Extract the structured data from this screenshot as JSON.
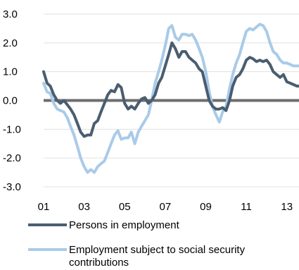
{
  "chart_data": {
    "type": "line",
    "title": "",
    "xlabel": "",
    "ylabel": "",
    "ylim": [
      -3.0,
      3.0
    ],
    "xlim": [
      2001.0,
      2013.6
    ],
    "y_ticks": [
      "3.0",
      "2.0",
      "1.0",
      "0.0",
      "-1.0",
      "-2.0",
      "-3.0"
    ],
    "y_tick_values": [
      3,
      2,
      1,
      0,
      -1,
      -2,
      -3
    ],
    "x_ticks": [
      "01",
      "03",
      "05",
      "07",
      "09",
      "11",
      "13"
    ],
    "x_tick_values": [
      2001,
      2003,
      2005,
      2007,
      2009,
      2011,
      2013
    ],
    "grid": true,
    "zero_line": true,
    "legend_position": "bottom",
    "series": [
      {
        "name": "Persons in employment",
        "color": "#4a5d70",
        "x": [
          2001.0,
          2001.17,
          2001.33,
          2001.5,
          2001.67,
          2001.83,
          2002.0,
          2002.17,
          2002.33,
          2002.5,
          2002.67,
          2002.83,
          2003.0,
          2003.17,
          2003.33,
          2003.5,
          2003.67,
          2003.83,
          2004.0,
          2004.17,
          2004.33,
          2004.5,
          2004.67,
          2004.83,
          2005.0,
          2005.17,
          2005.33,
          2005.5,
          2005.67,
          2005.83,
          2006.0,
          2006.17,
          2006.33,
          2006.5,
          2006.67,
          2006.83,
          2007.0,
          2007.17,
          2007.33,
          2007.5,
          2007.67,
          2007.83,
          2008.0,
          2008.17,
          2008.33,
          2008.5,
          2008.67,
          2008.83,
          2009.0,
          2009.17,
          2009.33,
          2009.5,
          2009.67,
          2009.83,
          2010.0,
          2010.17,
          2010.33,
          2010.5,
          2010.67,
          2010.83,
          2011.0,
          2011.17,
          2011.33,
          2011.5,
          2011.67,
          2011.83,
          2012.0,
          2012.17,
          2012.33,
          2012.5,
          2012.67,
          2012.83,
          2013.0,
          2013.17,
          2013.33,
          2013.5,
          2013.6
        ],
        "values": [
          1.0,
          0.6,
          0.5,
          0.2,
          0.0,
          -0.1,
          0.0,
          -0.15,
          -0.3,
          -0.5,
          -0.8,
          -1.1,
          -1.25,
          -1.2,
          -1.2,
          -0.8,
          -0.7,
          -0.4,
          -0.1,
          0.2,
          0.35,
          0.3,
          0.55,
          0.45,
          -0.1,
          -0.3,
          -0.2,
          -0.3,
          -0.1,
          0.05,
          0.1,
          -0.1,
          0.0,
          0.2,
          0.6,
          0.8,
          1.2,
          1.6,
          2.0,
          1.8,
          1.5,
          1.7,
          1.7,
          1.5,
          1.4,
          1.3,
          1.1,
          1.0,
          0.5,
          0.0,
          -0.2,
          -0.3,
          -0.3,
          -0.25,
          -0.35,
          0.0,
          0.5,
          0.8,
          0.9,
          1.1,
          1.4,
          1.5,
          1.45,
          1.35,
          1.4,
          1.35,
          1.4,
          1.25,
          1.0,
          0.9,
          0.8,
          0.9,
          0.65,
          0.6,
          0.55,
          0.5,
          0.5
        ]
      },
      {
        "name": "Employment subject to social security contributions",
        "color": "#a9cbe8",
        "x": [
          2001.0,
          2001.17,
          2001.33,
          2001.5,
          2001.67,
          2001.83,
          2002.0,
          2002.17,
          2002.33,
          2002.5,
          2002.67,
          2002.83,
          2003.0,
          2003.17,
          2003.33,
          2003.5,
          2003.67,
          2003.83,
          2004.0,
          2004.17,
          2004.33,
          2004.5,
          2004.67,
          2004.83,
          2005.0,
          2005.17,
          2005.33,
          2005.5,
          2005.67,
          2005.83,
          2006.0,
          2006.17,
          2006.33,
          2006.5,
          2006.67,
          2006.83,
          2007.0,
          2007.17,
          2007.33,
          2007.5,
          2007.67,
          2007.83,
          2008.0,
          2008.17,
          2008.33,
          2008.5,
          2008.67,
          2008.83,
          2009.0,
          2009.17,
          2009.33,
          2009.5,
          2009.67,
          2009.83,
          2010.0,
          2010.17,
          2010.33,
          2010.5,
          2010.67,
          2010.83,
          2011.0,
          2011.17,
          2011.33,
          2011.5,
          2011.67,
          2011.83,
          2012.0,
          2012.17,
          2012.33,
          2012.5,
          2012.67,
          2012.83,
          2013.0,
          2013.17,
          2013.33,
          2013.5,
          2013.6
        ],
        "values": [
          0.6,
          0.3,
          0.25,
          -0.1,
          -0.3,
          -0.35,
          -0.4,
          -0.6,
          -0.9,
          -1.2,
          -1.6,
          -2.0,
          -2.3,
          -2.5,
          -2.4,
          -2.5,
          -2.3,
          -2.2,
          -2.1,
          -1.8,
          -1.5,
          -1.2,
          -1.05,
          -1.35,
          -1.3,
          -1.3,
          -1.1,
          -1.5,
          -1.1,
          -0.9,
          -0.7,
          -0.5,
          0.0,
          0.6,
          1.0,
          1.4,
          1.9,
          2.5,
          2.6,
          2.2,
          2.1,
          2.3,
          2.3,
          2.25,
          2.3,
          2.1,
          1.8,
          1.5,
          1.0,
          0.3,
          -0.2,
          -0.5,
          -0.75,
          -0.4,
          -0.2,
          0.4,
          0.9,
          1.3,
          1.6,
          2.0,
          2.4,
          2.5,
          2.45,
          2.55,
          2.65,
          2.6,
          2.4,
          2.0,
          1.7,
          1.6,
          1.4,
          1.3,
          1.3,
          1.25,
          1.2,
          1.2,
          1.2
        ]
      }
    ]
  }
}
